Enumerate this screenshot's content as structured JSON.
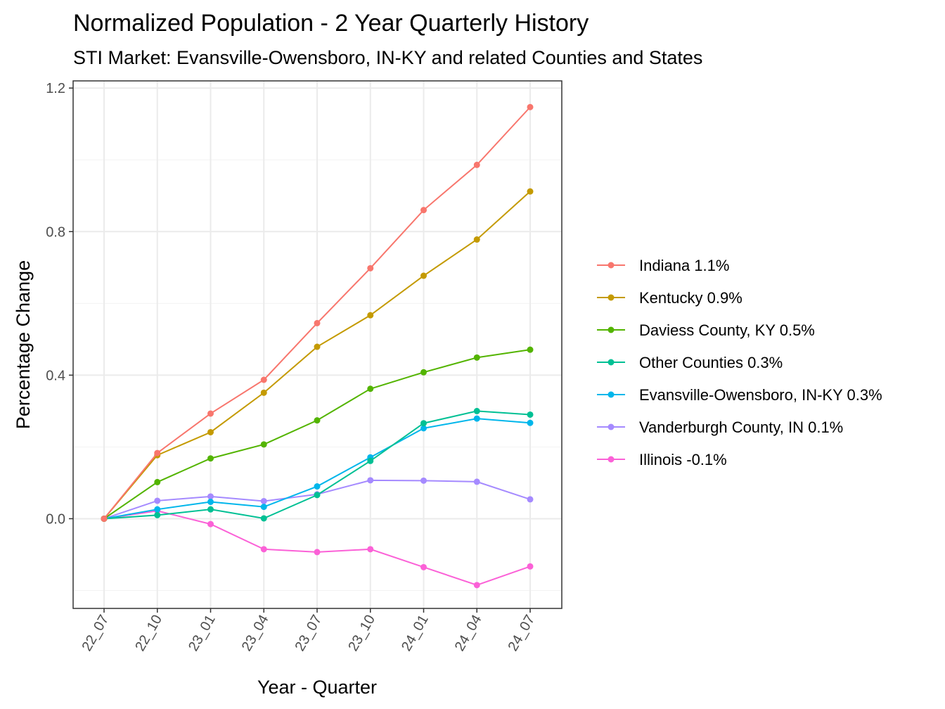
{
  "chart_data": {
    "type": "line",
    "title": "Normalized Population - 2 Year Quarterly History",
    "subtitle": "STI Market: Evansville-Owensboro, IN-KY and related Counties and States",
    "xlabel": "Year - Quarter",
    "ylabel": "Percentage Change",
    "x": [
      "22_07",
      "22_10",
      "23_01",
      "23_04",
      "23_07",
      "23_10",
      "24_01",
      "24_04",
      "24_07"
    ],
    "ylim": [
      -0.25,
      1.22
    ],
    "yticks": [
      0.0,
      0.4,
      0.8,
      1.2
    ],
    "ytick_labels": [
      "0.0",
      "0.4",
      "0.8",
      "1.2"
    ],
    "grid": true,
    "legend_position": "right",
    "series": [
      {
        "name": "Indiana 1.1%",
        "color": "#F8766D",
        "values": [
          0.0,
          0.183,
          0.293,
          0.387,
          0.545,
          0.698,
          0.86,
          0.986,
          1.147
        ]
      },
      {
        "name": "Kentucky 0.9%",
        "color": "#C49A00",
        "values": [
          0.0,
          0.177,
          0.241,
          0.351,
          0.479,
          0.567,
          0.677,
          0.778,
          0.912
        ]
      },
      {
        "name": "Daviess County, KY 0.5%",
        "color": "#53B400",
        "values": [
          0.0,
          0.102,
          0.168,
          0.207,
          0.274,
          0.362,
          0.408,
          0.449,
          0.471
        ]
      },
      {
        "name": "Other Counties 0.3%",
        "color": "#00C094",
        "values": [
          0.0,
          0.01,
          0.026,
          0.001,
          0.066,
          0.161,
          0.266,
          0.3,
          0.29
        ]
      },
      {
        "name": "Evansville-Owensboro, IN-KY 0.3%",
        "color": "#00B6EB",
        "values": [
          0.0,
          0.026,
          0.047,
          0.033,
          0.09,
          0.171,
          0.252,
          0.279,
          0.267
        ]
      },
      {
        "name": "Vanderburgh County, IN 0.1%",
        "color": "#A58AFF",
        "values": [
          0.0,
          0.05,
          0.062,
          0.049,
          0.068,
          0.107,
          0.106,
          0.103,
          0.054
        ]
      },
      {
        "name": "Illinois -0.1%",
        "color": "#FB61D7",
        "values": [
          0.0,
          0.022,
          -0.015,
          -0.085,
          -0.093,
          -0.085,
          -0.135,
          -0.185,
          -0.133
        ]
      }
    ]
  }
}
